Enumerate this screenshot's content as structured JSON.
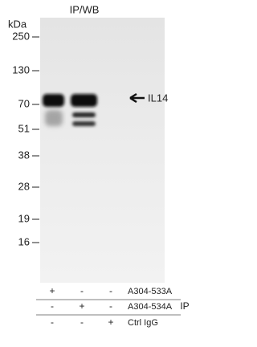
{
  "header": {
    "title": "IP/WB",
    "unit": "kDa"
  },
  "markers": [
    250,
    130,
    70,
    51,
    38,
    28,
    19,
    16
  ],
  "band_label": "IL14",
  "table": {
    "rows": [
      {
        "label": "A304-533A",
        "cells": [
          "+",
          "-",
          "-"
        ]
      },
      {
        "label": "A304-534A",
        "cells": [
          "-",
          "+",
          "-"
        ]
      },
      {
        "label": "Ctrl IgG",
        "cells": [
          "-",
          "-",
          "+"
        ]
      }
    ]
  },
  "group_label": "IP"
}
